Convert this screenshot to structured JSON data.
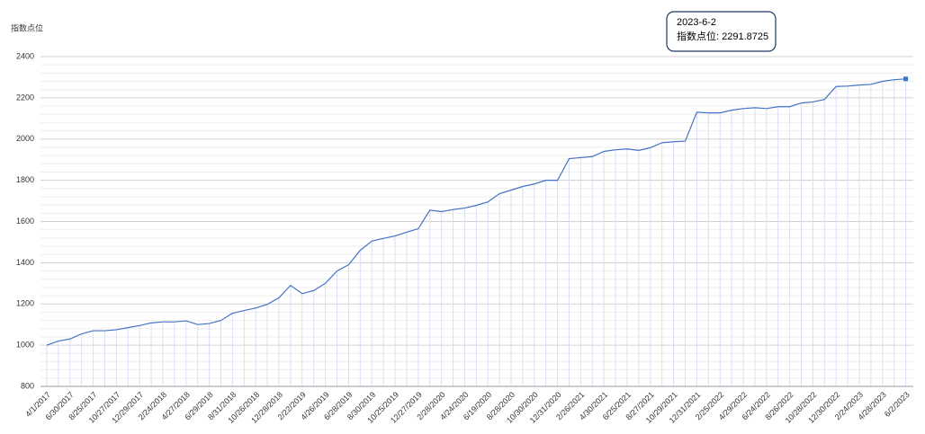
{
  "chart_data": {
    "type": "line",
    "y_label": "指数点位",
    "categories": [
      "4/1/2017",
      null,
      "6/30/2017",
      null,
      "8/25/2017",
      null,
      "10/27/2017",
      null,
      "12/29/2017",
      null,
      "2/24/2018",
      null,
      "4/27/2018",
      null,
      "6/29/2018",
      null,
      "8/31/2018",
      null,
      "10/26/2018",
      null,
      "12/28/2018",
      null,
      "2/22/2019",
      null,
      "4/26/2019",
      null,
      "6/28/2019",
      null,
      "8/30/2019",
      null,
      "10/25/2019",
      null,
      "12/27/2019",
      null,
      "2/28/2020",
      null,
      "4/24/2020",
      null,
      "6/19/2020",
      null,
      "8/28/2020",
      null,
      "10/30/2020",
      null,
      "12/31/2020",
      null,
      "2/26/2021",
      null,
      "4/30/2021",
      null,
      "6/25/2021",
      null,
      "8/27/2021",
      null,
      "10/29/2021",
      null,
      "12/31/2021",
      null,
      "2/25/2022",
      null,
      "4/29/2022",
      null,
      "6/24/2022",
      null,
      "8/26/2022",
      null,
      "10/28/2022",
      null,
      "12/30/2022",
      null,
      "2/24/2023",
      null,
      "4/28/2023",
      null,
      "6/2/2023"
    ],
    "series": [
      {
        "name": "指数点位",
        "color": "#4472c4",
        "values": [
          1000,
          1020,
          1030,
          1055,
          1070,
          1070,
          1075,
          1085,
          1095,
          1108,
          1113,
          1113,
          1118,
          1100,
          1105,
          1120,
          1155,
          1168,
          1180,
          1198,
          1230,
          1290,
          1250,
          1265,
          1300,
          1360,
          1390,
          1460,
          1505,
          1518,
          1530,
          1548,
          1565,
          1655,
          1648,
          1658,
          1665,
          1678,
          1695,
          1735,
          1752,
          1770,
          1782,
          1800,
          1800,
          1905,
          1910,
          1915,
          1940,
          1948,
          1952,
          1945,
          1958,
          1982,
          1987,
          1990,
          2130,
          2127,
          2127,
          2140,
          2148,
          2152,
          2148,
          2157,
          2157,
          2175,
          2180,
          2192,
          2255,
          2257,
          2262,
          2265,
          2280,
          2288,
          2291.8725
        ]
      }
    ],
    "ylim": [
      800,
      2400
    ],
    "yticks": [
      800,
      1000,
      1200,
      1400,
      1600,
      1800,
      2000,
      2200,
      2400
    ],
    "y_minor_ticks": [
      840,
      880,
      920,
      960,
      1040,
      1080,
      1120,
      1160,
      1240,
      1280,
      1320,
      1360,
      1440,
      1480,
      1520,
      1560,
      1640,
      1680,
      1720,
      1760,
      1840,
      1880,
      1920,
      1960,
      2040,
      2080,
      2120,
      2160,
      2240,
      2280,
      2320,
      2360
    ],
    "grid": true,
    "tooltip": {
      "title": "2023-6-2",
      "label": "指数点位: 2291.8725"
    }
  }
}
